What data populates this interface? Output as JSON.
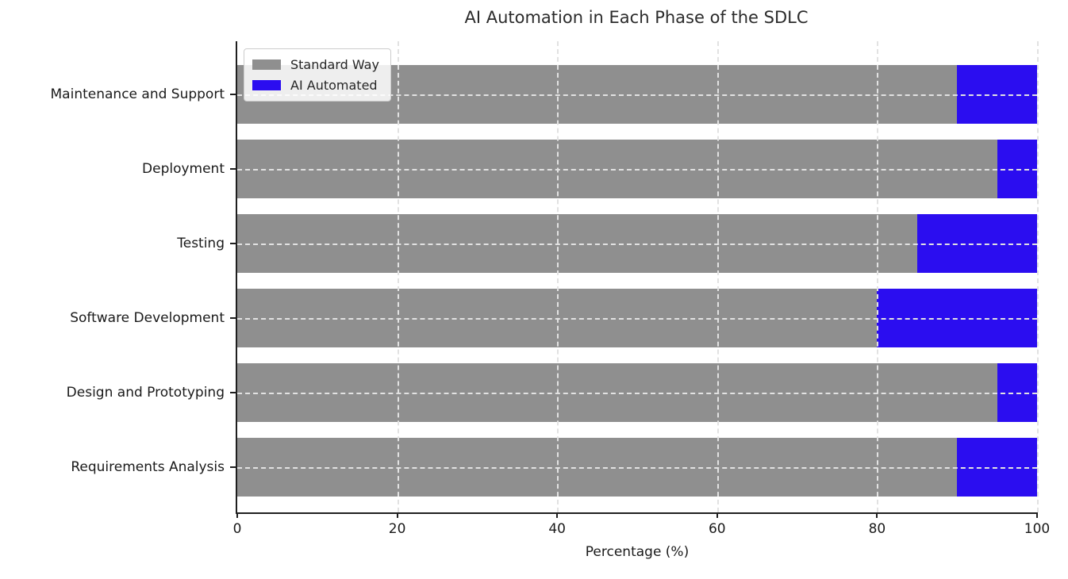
{
  "chart_data": {
    "type": "bar",
    "orientation": "horizontal",
    "stacked": true,
    "title": "AI Automation in Each Phase of the SDLC",
    "xlabel": "Percentage (%)",
    "ylabel": "",
    "categories_top_to_bottom": [
      "Maintenance and Support",
      "Deployment",
      "Testing",
      "Software Development",
      "Design and Prototyping",
      "Requirements Analysis"
    ],
    "series": [
      {
        "name": "Standard Way",
        "color": "#8f8f8f",
        "values": [
          90,
          95,
          85,
          80,
          95,
          90
        ]
      },
      {
        "name": "AI Automated",
        "color": "#2b0df0",
        "values": [
          10,
          5,
          15,
          20,
          5,
          10
        ]
      }
    ],
    "xlim": [
      0,
      100
    ],
    "x_ticks": [
      0,
      20,
      40,
      60,
      80,
      100
    ],
    "grid": {
      "visible": true,
      "style": "dashed",
      "color": "#e2e2e2"
    },
    "legend": {
      "position": "upper-left",
      "entries": [
        "Standard Way",
        "AI Automated"
      ]
    }
  }
}
